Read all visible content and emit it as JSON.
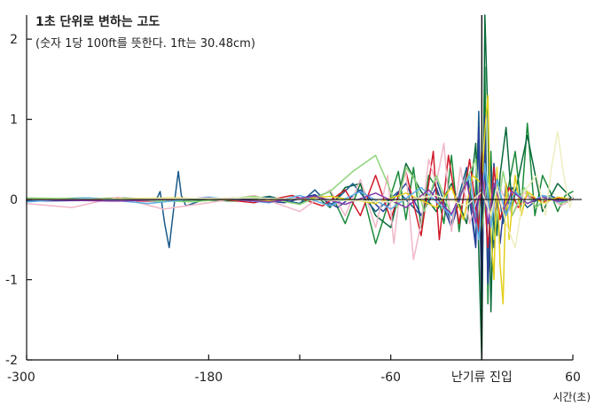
{
  "chart_data": {
    "type": "line",
    "title": "1초 단위로 변하는 고도",
    "subtitle": "(숫자 1당 100ft를 뜻한다. 1ft는 30.48cm)",
    "xlabel": "시간(초)",
    "ylabel": "",
    "xlim": [
      -300,
      60
    ],
    "ylim": [
      -2,
      2.3
    ],
    "x_ticks": [
      -300,
      -180,
      -60,
      60
    ],
    "x_tick_labels": [
      "-300",
      "-180",
      "-60",
      "60"
    ],
    "x_minor_ticks": [
      -240,
      -120
    ],
    "y_ticks": [
      2,
      1,
      0,
      -1,
      -2
    ],
    "y_tick_labels": [
      "2",
      "1",
      "0",
      "-1",
      "-2"
    ],
    "annotation": {
      "label": "난기류 진입",
      "x": 0
    },
    "grid": false,
    "legend": "none",
    "series": [
      {
        "color": "#1b8a3a",
        "x": [
          -300,
          -260,
          -220,
          -180,
          -150,
          -120,
          -100,
          -90,
          -80,
          -70,
          -60,
          -55,
          -50,
          -45,
          -40,
          -35,
          -30,
          -25,
          -20,
          -15,
          -10,
          -5,
          -2,
          0,
          2,
          4,
          6,
          8,
          10,
          14,
          18,
          22,
          26,
          30,
          35,
          40,
          45,
          50,
          55,
          60
        ],
        "y": [
          0.0,
          0.02,
          -0.02,
          0.0,
          0.03,
          -0.05,
          0.1,
          -0.3,
          0.2,
          -0.55,
          0.05,
          0.35,
          -0.25,
          0.4,
          -0.35,
          0.3,
          0.15,
          -0.3,
          0.55,
          -0.4,
          0.35,
          -0.2,
          0.9,
          -1.6,
          1.65,
          -1.3,
          0.6,
          -0.5,
          0.3,
          -0.25,
          0.2,
          0.6,
          -0.1,
          0.95,
          -0.2,
          0.3,
          0.1,
          -0.15,
          0.05,
          0.1
        ]
      },
      {
        "color": "#0a6a3a",
        "x": [
          -300,
          -240,
          -200,
          -160,
          -140,
          -120,
          -110,
          -100,
          -90,
          -80,
          -70,
          -60,
          -50,
          -40,
          -30,
          -20,
          -10,
          -4,
          0,
          2,
          4,
          6,
          8,
          10,
          12,
          16,
          20,
          30,
          40,
          50,
          60
        ],
        "y": [
          -0.02,
          0.02,
          0.0,
          -0.02,
          0.04,
          -0.06,
          0.05,
          -0.1,
          0.15,
          0.2,
          -0.2,
          -0.35,
          0.45,
          0.1,
          -0.15,
          0.2,
          -0.3,
          0.7,
          -2.0,
          2.3,
          1.0,
          -1.4,
          0.2,
          -0.45,
          0.3,
          0.9,
          -0.1,
          0.8,
          -0.15,
          0.2,
          0.0
        ]
      },
      {
        "color": "#1a5a8a",
        "x": [
          -300,
          -250,
          -215,
          -212,
          -209,
          -206,
          -203,
          -200,
          -198,
          -195,
          -180,
          -160,
          -140,
          -120,
          -110,
          -100,
          -85,
          -70,
          -55,
          -40,
          -30,
          -20,
          -10,
          -4,
          -2,
          0,
          2,
          4,
          6,
          8,
          10,
          14,
          20,
          30,
          40,
          50,
          60
        ],
        "y": [
          0.0,
          0.0,
          -0.02,
          0.1,
          -0.3,
          -0.6,
          -0.1,
          0.35,
          0.05,
          -0.08,
          0.02,
          0.0,
          0.03,
          -0.05,
          0.12,
          -0.08,
          0.2,
          -0.15,
          0.1,
          -0.2,
          0.25,
          -0.3,
          0.4,
          -0.55,
          1.1,
          -0.9,
          0.6,
          -1.0,
          0.4,
          -0.6,
          0.3,
          -0.3,
          0.15,
          -0.1,
          0.05,
          0.0,
          0.02
        ]
      },
      {
        "color": "#2a3f9a",
        "x": [
          -300,
          -200,
          -160,
          -130,
          -110,
          -95,
          -80,
          -65,
          -50,
          -40,
          -30,
          -20,
          -10,
          -4,
          -2,
          0,
          2,
          4,
          6,
          8,
          12,
          16,
          20,
          28,
          36,
          44,
          52,
          60
        ],
        "y": [
          -0.02,
          0.0,
          0.02,
          -0.04,
          0.06,
          -0.1,
          0.12,
          -0.15,
          0.2,
          -0.2,
          0.15,
          -0.35,
          0.3,
          -0.6,
          0.9,
          -1.25,
          1.05,
          -1.05,
          -0.35,
          0.45,
          -0.55,
          0.2,
          -0.2,
          0.1,
          -0.1,
          0.05,
          0.0,
          0.02
        ]
      },
      {
        "color": "#d11a2a",
        "x": [
          -300,
          -220,
          -180,
          -150,
          -125,
          -105,
          -90,
          -80,
          -70,
          -60,
          -50,
          -40,
          -32,
          -28,
          -22,
          -15,
          -8,
          -2,
          0,
          4,
          8,
          12,
          18,
          24,
          30,
          40,
          50,
          60
        ],
        "y": [
          0.0,
          -0.02,
          0.02,
          -0.04,
          0.05,
          -0.08,
          0.12,
          -0.2,
          0.3,
          -0.25,
          0.35,
          -0.45,
          0.6,
          -0.5,
          0.55,
          -0.3,
          0.5,
          -0.4,
          0.6,
          -0.6,
          0.4,
          -0.25,
          0.15,
          -0.1,
          0.05,
          -0.03,
          0.02,
          0.0
        ]
      },
      {
        "color": "#f0b7c7",
        "x": [
          -300,
          -270,
          -240,
          -210,
          -180,
          -150,
          -120,
          -100,
          -90,
          -80,
          -70,
          -62,
          -58,
          -54,
          -50,
          -45,
          -40,
          -35,
          -30,
          -25,
          -20,
          -14,
          -8,
          0,
          6,
          12,
          20,
          28,
          36,
          44,
          52,
          60
        ],
        "y": [
          -0.05,
          -0.1,
          0.03,
          -0.12,
          -0.04,
          0.05,
          -0.15,
          0.12,
          -0.2,
          0.25,
          -0.35,
          0.3,
          -0.55,
          0.1,
          0.35,
          -0.75,
          -0.3,
          0.5,
          0.2,
          0.7,
          -0.4,
          0.4,
          -0.3,
          0.2,
          -0.25,
          0.15,
          -0.2,
          0.1,
          -0.1,
          0.05,
          -0.08,
          0.0
        ]
      },
      {
        "color": "#8fd57a",
        "x": [
          -300,
          -240,
          -190,
          -150,
          -120,
          -100,
          -85,
          -70,
          -62,
          -56,
          -50,
          -44,
          -38,
          -30,
          -20,
          -10,
          -4,
          0,
          4,
          8,
          14,
          20,
          28,
          36,
          44,
          52,
          60
        ],
        "y": [
          0.02,
          0.0,
          -0.03,
          0.04,
          -0.06,
          0.1,
          0.35,
          0.55,
          0.2,
          -0.1,
          0.4,
          0.25,
          -0.15,
          0.3,
          -0.2,
          0.25,
          0.5,
          -0.4,
          0.3,
          -0.5,
          0.35,
          -0.2,
          0.15,
          -0.1,
          0.05,
          -0.05,
          0.0
        ]
      },
      {
        "color": "#e3cf1a",
        "x": [
          -300,
          -200,
          -140,
          -100,
          -70,
          -50,
          -30,
          -20,
          -12,
          -6,
          0,
          2,
          4,
          6,
          8,
          10,
          12,
          14,
          16,
          18,
          22,
          26,
          30,
          40,
          50,
          60
        ],
        "y": [
          0.0,
          0.02,
          -0.02,
          0.04,
          -0.05,
          0.08,
          -0.1,
          0.15,
          -0.25,
          0.3,
          0.2,
          0.85,
          1.3,
          -0.4,
          -1.0,
          0.4,
          -0.8,
          -1.3,
          0.2,
          -0.5,
          0.3,
          -0.2,
          0.1,
          -0.05,
          0.03,
          0.0
        ]
      },
      {
        "color": "#5ab0e8",
        "x": [
          -300,
          -260,
          -220,
          -180,
          -140,
          -120,
          -100,
          -80,
          -60,
          -40,
          -20,
          -8,
          -2,
          2,
          6,
          10,
          16,
          22,
          30,
          40,
          50,
          60
        ],
        "y": [
          -0.03,
          0.02,
          -0.05,
          0.03,
          -0.04,
          0.05,
          -0.08,
          0.1,
          -0.12,
          0.15,
          -0.2,
          0.3,
          -0.5,
          0.45,
          -0.35,
          0.25,
          -0.2,
          0.1,
          -0.05,
          0.05,
          -0.03,
          0.0
        ]
      },
      {
        "color": "#8a3aa8",
        "x": [
          -300,
          -240,
          -180,
          -140,
          -110,
          -90,
          -70,
          -50,
          -35,
          -20,
          -10,
          -4,
          0,
          4,
          8,
          14,
          20,
          30,
          40,
          50,
          60
        ],
        "y": [
          0.0,
          -0.02,
          0.02,
          -0.03,
          0.04,
          -0.06,
          0.08,
          -0.1,
          0.12,
          -0.18,
          0.22,
          -0.3,
          0.35,
          -0.3,
          0.2,
          -0.15,
          0.1,
          -0.05,
          0.03,
          -0.02,
          0.0
        ]
      },
      {
        "color": "#eeeec2",
        "x": [
          -300,
          -150,
          -60,
          -30,
          -10,
          0,
          6,
          10,
          16,
          22,
          28,
          36,
          42,
          46,
          50,
          54,
          58,
          60
        ],
        "y": [
          0.0,
          0.02,
          -0.03,
          0.05,
          -0.08,
          0.1,
          -0.2,
          0.15,
          -0.3,
          -0.6,
          0.1,
          0.3,
          -0.2,
          0.4,
          0.85,
          0.3,
          -0.1,
          0.05
        ]
      }
    ]
  }
}
